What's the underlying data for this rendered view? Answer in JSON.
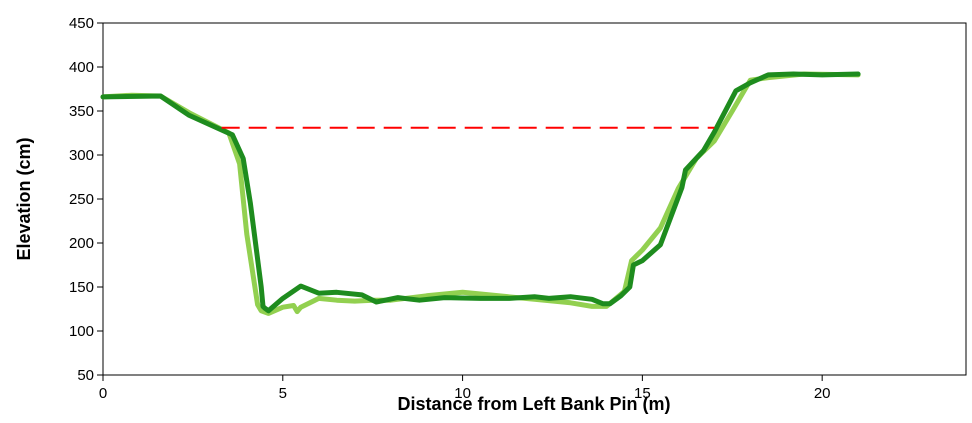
{
  "chart_data": {
    "type": "line",
    "title": "",
    "xlabel": "Distance from Left Bank Pin (m)",
    "ylabel": "Elevation (cm)",
    "xlim": [
      0,
      24
    ],
    "ylim": [
      50,
      450
    ],
    "xticks": [
      0,
      5,
      10,
      15,
      20
    ],
    "yticks": [
      50,
      100,
      150,
      200,
      250,
      300,
      350,
      400,
      450
    ],
    "xtick_labels": [
      "0",
      "5",
      "10",
      "15",
      "20"
    ],
    "ytick_labels": [
      "50",
      "100",
      "150",
      "200",
      "250",
      "300",
      "350",
      "400",
      "450"
    ],
    "grid": false,
    "legend": "none",
    "series": [
      {
        "style": "thick-line",
        "color": "#92d050",
        "x": [
          0,
          0.8,
          1.6,
          2.4,
          3.5,
          3.8,
          4.0,
          4.3,
          4.4,
          4.6,
          5.0,
          5.3,
          5.4,
          5.5,
          6.0,
          6.5,
          7.0,
          7.5,
          8.0,
          9.0,
          10.0,
          11.0,
          12.0,
          13.0,
          13.6,
          14.0,
          14.5,
          14.7,
          15.0,
          15.5,
          16.0,
          16.5,
          17.0,
          17.5,
          18.0,
          18.5,
          19.5,
          21.0
        ],
        "y": [
          366,
          368,
          367,
          348,
          325,
          290,
          210,
          130,
          123,
          120,
          127,
          129,
          122,
          127,
          137,
          135,
          134,
          135,
          135,
          140,
          144,
          140,
          136,
          132,
          128,
          128,
          145,
          180,
          192,
          217,
          262,
          296,
          316,
          350,
          385,
          388,
          392,
          391
        ]
      },
      {
        "style": "thick-line",
        "color": "#1e8c1e",
        "x": [
          0,
          1.6,
          2.4,
          3.6,
          3.9,
          4.1,
          4.4,
          4.45,
          4.5,
          4.6,
          5.0,
          5.5,
          6.0,
          6.5,
          7.2,
          7.6,
          8.2,
          8.8,
          9.5,
          10.5,
          11.3,
          12.0,
          12.4,
          13.0,
          13.6,
          13.9,
          14.1,
          14.4,
          14.65,
          14.75,
          15.0,
          15.5,
          16.1,
          16.2,
          16.7,
          17.0,
          17.6,
          18.0,
          18.5,
          19.2,
          20.0,
          21.0
        ],
        "y": [
          366,
          367,
          345,
          323,
          296,
          245,
          150,
          128,
          126,
          123,
          137,
          151,
          143,
          144,
          141,
          133,
          138,
          135,
          138,
          137,
          137,
          139,
          137,
          139,
          136,
          131,
          131,
          140,
          150,
          175,
          180,
          198,
          263,
          283,
          305,
          326,
          373,
          382,
          391,
          392,
          391,
          392
        ]
      },
      {
        "style": "dashed",
        "color": "#ff0000",
        "x": [
          3.3,
          17.0
        ],
        "y": [
          331,
          331
        ]
      }
    ]
  }
}
